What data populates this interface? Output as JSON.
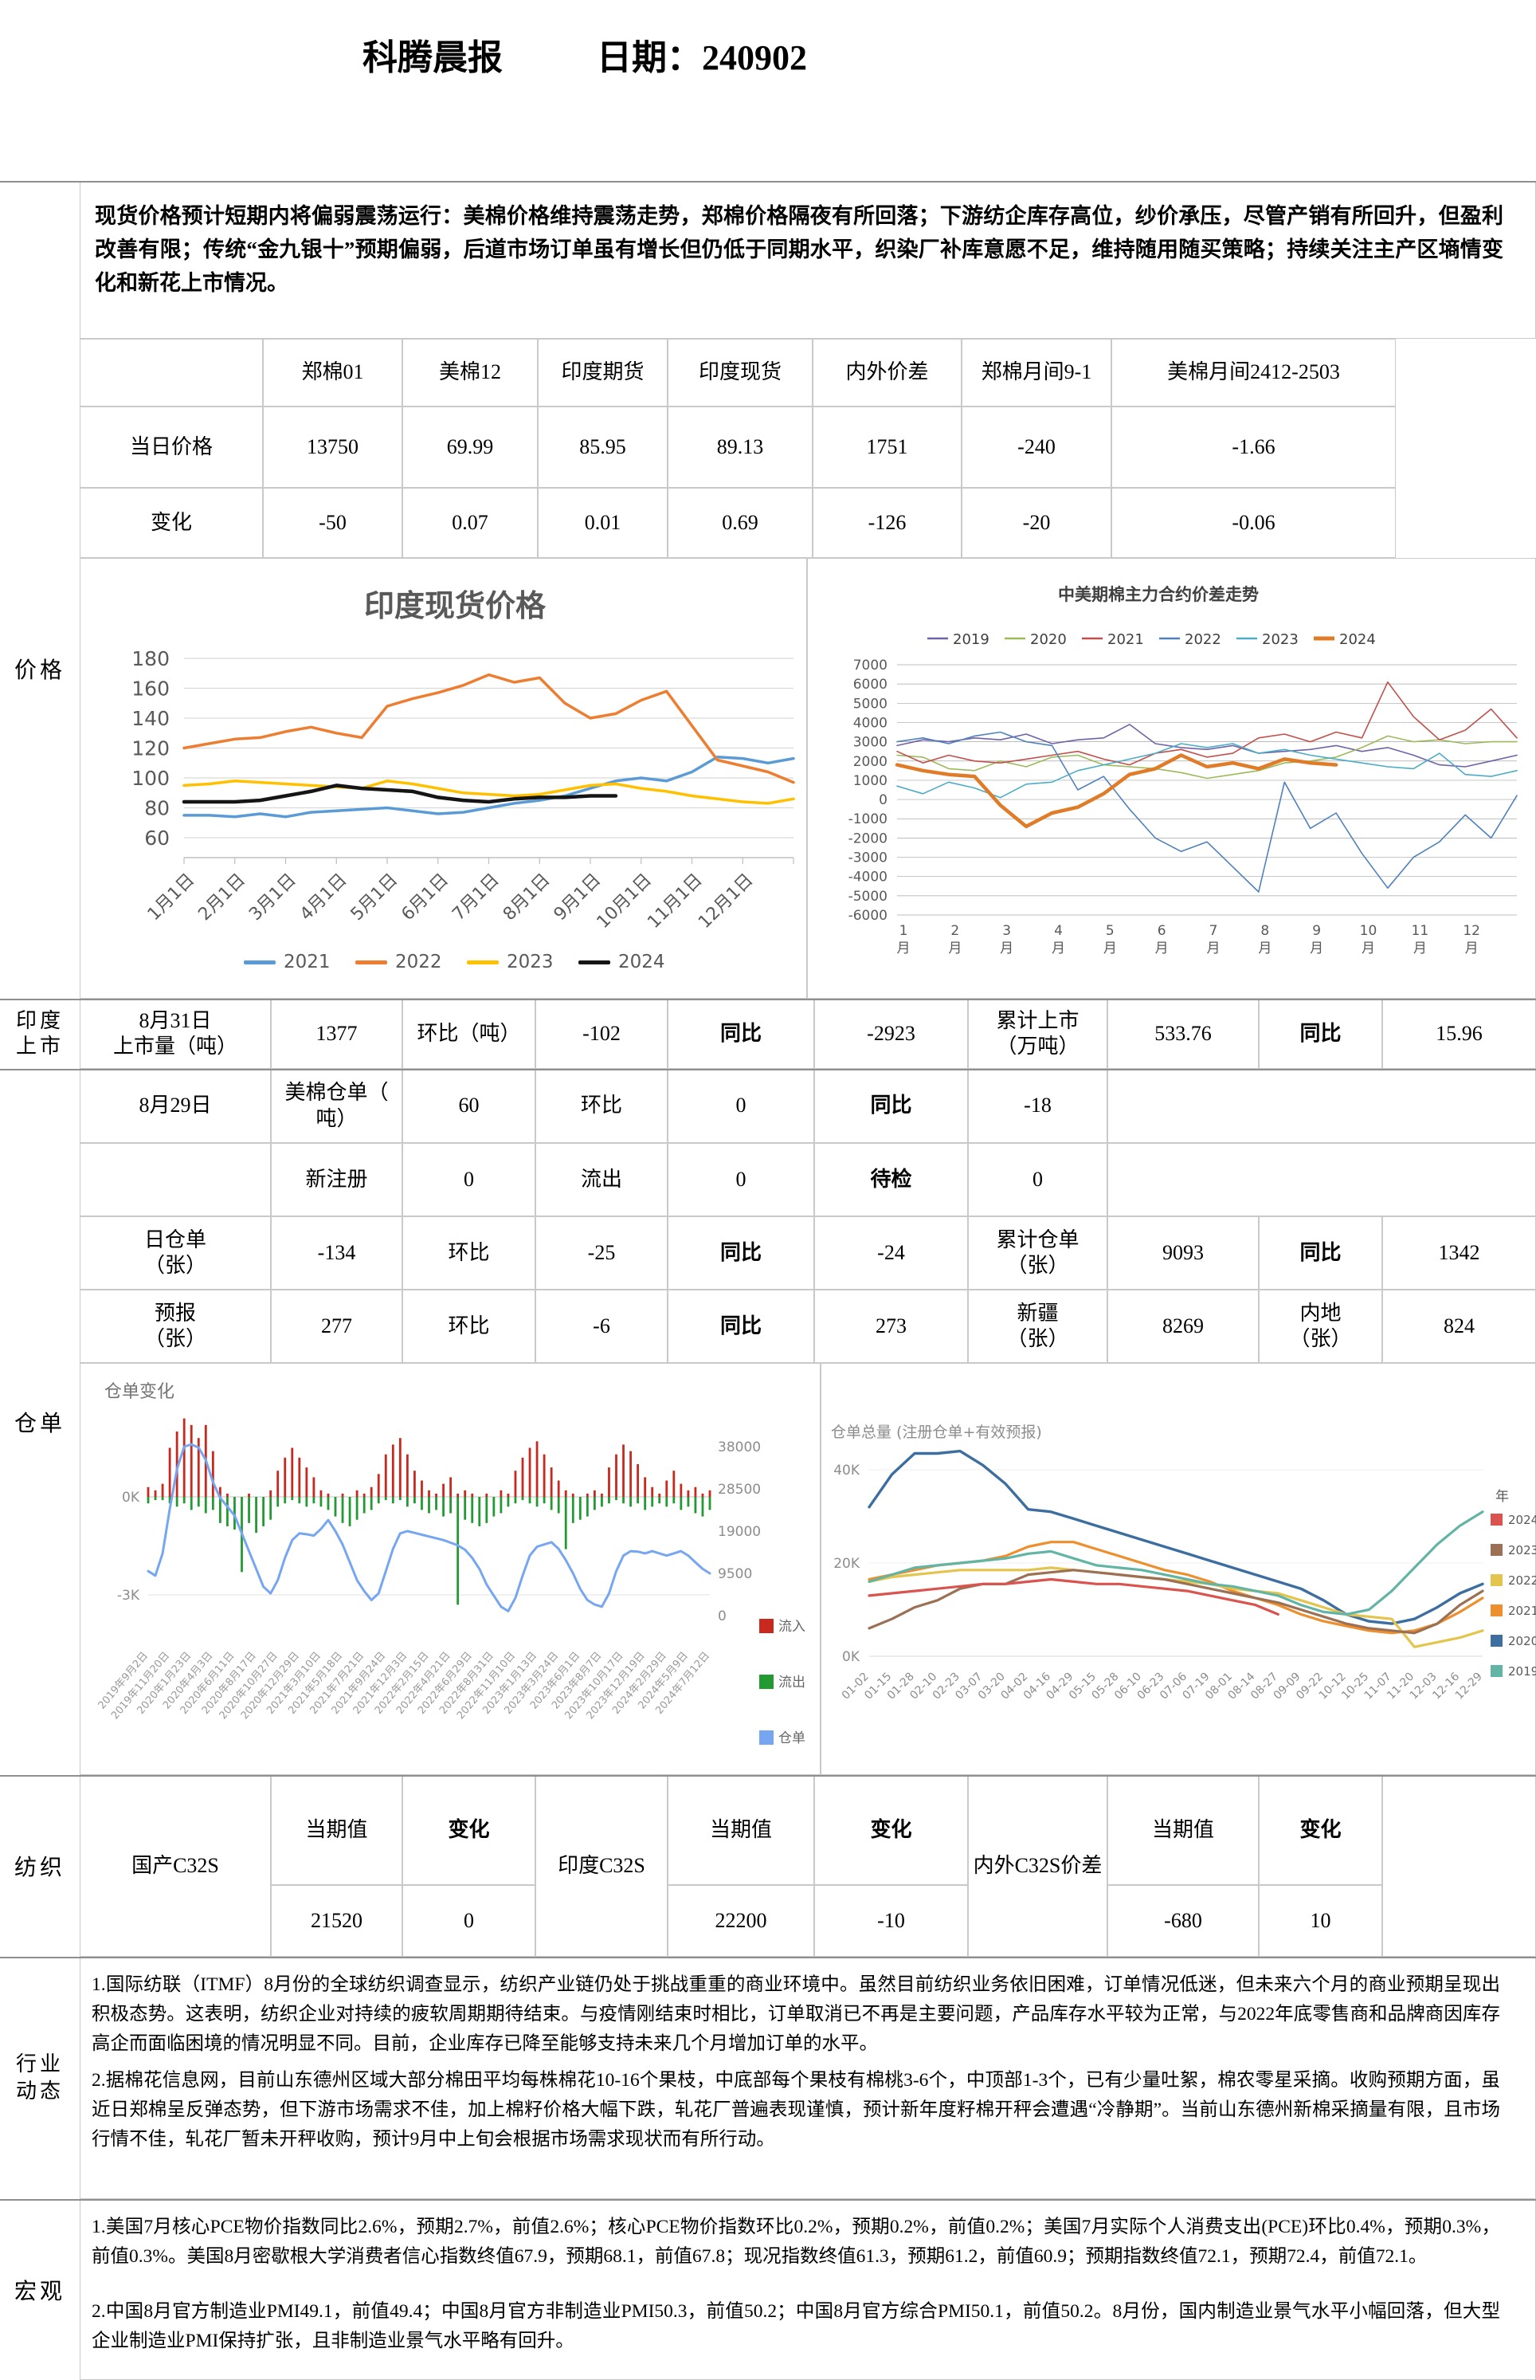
{
  "title": {
    "report": "科腾晨报",
    "date_label": "日期：240902"
  },
  "summary": {
    "text": "现货价格预计短期内将偏弱震荡运行：美棉价格维持震荡走势，郑棉价格隔夜有所回落；下游纺企库存高位，纱价承压，尽管产销有所回升，但盈利改善有限；传统“金九银十”预期偏弱，后道市场订单虽有增长但仍低于同期水平，织染厂补库意愿不足，维持随用随买策略；持续关注主产区墒情变化和新花上市情况。"
  },
  "sections": {
    "price": "价格",
    "india1": "印度",
    "india2": "上市",
    "warehouse": "仓单",
    "textile": "纺织",
    "industry1": "行业",
    "industry2": "动态",
    "macro": "宏观"
  },
  "price_table": {
    "headers": [
      "郑棉01",
      "美棉12",
      "印度期货",
      "印度现货",
      "内外价差",
      "郑棉月间9-1",
      "美棉月间2412-2503"
    ],
    "row1_label": "当日价格",
    "row1": [
      "13750",
      "69.99",
      "85.95",
      "89.13",
      "1751",
      "-240",
      "-1.66"
    ],
    "row2_label": "变化",
    "row2": [
      "-50",
      "0.07",
      "0.01",
      "0.69",
      "-126",
      "-20",
      "-0.06"
    ]
  },
  "india_row": {
    "date": "8月31日",
    "date2": "上市量（吨）",
    "v1": "1377",
    "l1": "环比（吨）",
    "v2": "-102",
    "l2": "同比",
    "v3": "-2923",
    "l3a": "累计上市",
    "l3b": "（万吨）",
    "v4": "533.76",
    "l4": "同比",
    "v5": "15.96"
  },
  "wh": {
    "r829": {
      "date": "8月29日",
      "l1a": "美棉仓单（",
      "l1b": "吨）",
      "v1": "60",
      "l2": "环比",
      "v2": "0",
      "l3": "同比",
      "v3": "-18"
    },
    "rnew": {
      "l1": "新注册",
      "v1": "0",
      "l2": "流出",
      "v2": "0",
      "l3": "待检",
      "v3": "0"
    },
    "rdaily": {
      "l0a": "日仓单",
      "l0b": "（张）",
      "v1": "-134",
      "l1": "环比",
      "v2": "-25",
      "l2": "同比",
      "v3": "-24",
      "l3a": "累计仓单",
      "l3b": "（张）",
      "v4": "9093",
      "l4": "同比",
      "v5": "1342"
    },
    "rfore": {
      "l0a": "预报",
      "l0b": "（张）",
      "v1": "277",
      "l1": "环比",
      "v2": "-6",
      "l2": "同比",
      "v3": "273",
      "l3a": "新疆",
      "l3b": "（张）",
      "v4": "8269",
      "l4a": "内地",
      "l4b": "（张）",
      "v5": "824"
    }
  },
  "textile_row": {
    "g1": "国产C32S",
    "g2": "印度C32S",
    "g3": "内外C32S价差",
    "h_cur": "当期值",
    "h_chg": "变化",
    "v": [
      "21520",
      "0",
      "22200",
      "-10",
      "-680",
      "10"
    ]
  },
  "industry": {
    "p1": "1.国际纺联（ITMF）8月份的全球纺织调查显示，纺织产业链仍处于挑战重重的商业环境中。虽然目前纺织业务依旧困难，订单情况低迷，但未来六个月的商业预期呈现出积极态势。这表明，纺织企业对持续的疲软周期期待结束。与疫情刚结束时相比，订单取消已不再是主要问题，产品库存水平较为正常，与2022年底零售商和品牌商因库存高企而面临困境的情况明显不同。目前，企业库存已降至能够支持未来几个月增加订单的水平。",
    "p2": "2.据棉花信息网，目前山东德州区域大部分棉田平均每株棉花10-16个果枝，中底部每个果枝有棉桃3-6个，中顶部1-3个，已有少量吐絮，棉农零星采摘。收购预期方面，虽近日郑棉呈反弹态势，但下游市场需求不佳，加上棉籽价格大幅下跌，轧花厂普遍表现谨慎，预计新年度籽棉开秤会遭遇“冷静期”。当前山东德州新棉采摘量有限，且市场行情不佳，轧花厂暂未开秤收购，预计9月中上旬会根据市场需求现状而有所行动。"
  },
  "macro": {
    "p1": "1.美国7月核心PCE物价指数同比2.6%，预期2.7%，前值2.6%；核心PCE物价指数环比0.2%，预期0.2%，前值0.2%；美国7月实际个人消费支出(PCE)环比0.4%，预期0.3%，前值0.3%。美国8月密歇根大学消费者信心指数终值67.9，预期68.1，前值67.8；现况指数终值61.3，预期61.2，前值60.9；预期指数终值72.1，预期72.4，前值72.1。",
    "p2": "2.中国8月官方制造业PMI49.1，前值49.4；中国8月官方非制造业PMI50.3，前值50.2；中国8月官方综合PMI50.1，前值50.2。8月份，国内制造业景气水平小幅回落，但大型企业制造业PMI保持扩张，且非制造业景气水平略有回升。"
  },
  "chart_data": [
    {
      "id": "india_spot",
      "type": "line",
      "title": "印度现货价格",
      "ylim": [
        60,
        180
      ],
      "yticks": [
        60,
        80,
        100,
        120,
        140,
        160,
        180
      ],
      "x_labels": [
        "1月1日",
        "2月1日",
        "3月1日",
        "4月1日",
        "5月1日",
        "6月1日",
        "7月1日",
        "8月1日",
        "9月1日",
        "10月1日",
        "11月1日",
        "12月1日"
      ],
      "x_den": 24,
      "legend_position": "bottom",
      "grid": true,
      "series": [
        {
          "name": "2021",
          "color": "#5B9BD5",
          "width": 3.5,
          "values": [
            75,
            75,
            74,
            76,
            74,
            77,
            78,
            79,
            80,
            78,
            76,
            77,
            80,
            83,
            85,
            88,
            93,
            98,
            100,
            98,
            104,
            114,
            113,
            110,
            113
          ]
        },
        {
          "name": "2022",
          "color": "#ED7D31",
          "width": 3.5,
          "values": [
            120,
            123,
            126,
            127,
            131,
            134,
            130,
            127,
            148,
            153,
            157,
            162,
            169,
            164,
            167,
            150,
            140,
            143,
            152,
            158,
            135,
            112,
            108,
            104,
            97
          ]
        },
        {
          "name": "2023",
          "color": "#FFC000",
          "width": 3.5,
          "values": [
            95,
            96,
            98,
            97,
            96,
            95,
            94,
            93,
            98,
            96,
            93,
            90,
            89,
            88,
            89,
            92,
            95,
            96,
            93,
            91,
            88,
            86,
            84,
            83,
            86
          ]
        },
        {
          "name": "2024",
          "color": "#151515",
          "width": 4.5,
          "values": [
            84,
            84,
            84,
            85,
            88,
            91,
            95,
            93,
            92,
            91,
            87,
            85,
            84,
            86,
            87,
            87,
            88,
            88
          ]
        }
      ]
    },
    {
      "id": "spread",
      "type": "line",
      "title": "中美期棉主力合约价差走势",
      "ylim": [
        -6000,
        7000
      ],
      "ytick_step": 1000,
      "x_labels": [
        "1月",
        "2月",
        "3月",
        "4月",
        "5月",
        "6月",
        "7月",
        "8月",
        "9月",
        "10月",
        "11月",
        "12月"
      ],
      "x_den": 24,
      "legend_position": "top",
      "grid": true,
      "series": [
        {
          "name": "2019",
          "color": "#6F62A8",
          "width": 1.6,
          "values": [
            2800,
            3100,
            3000,
            3200,
            3100,
            3400,
            2900,
            3100,
            3200,
            3900,
            2900,
            2700,
            2600,
            2800,
            2400,
            2500,
            2600,
            2800,
            2500,
            2700,
            2300,
            1800,
            1700,
            2000,
            2300
          ]
        },
        {
          "name": "2020",
          "color": "#9BBB59",
          "width": 1.6,
          "values": [
            2300,
            2200,
            1600,
            1500,
            2000,
            1700,
            2200,
            2300,
            1800,
            1700,
            1600,
            1400,
            1100,
            1300,
            1500,
            1900,
            2000,
            2200,
            2700,
            3300,
            3000,
            3100,
            2900,
            3000,
            3000
          ]
        },
        {
          "name": "2021",
          "color": "#C0504D",
          "width": 1.6,
          "values": [
            2500,
            1900,
            2300,
            2000,
            1900,
            2100,
            2300,
            2500,
            2100,
            1800,
            2400,
            2600,
            2200,
            2400,
            3200,
            3400,
            3000,
            3500,
            3200,
            6100,
            4300,
            3100,
            3600,
            4700,
            3200
          ]
        },
        {
          "name": "2022",
          "color": "#4F81BD",
          "width": 1.6,
          "values": [
            3000,
            3200,
            2900,
            3300,
            3500,
            3000,
            2800,
            500,
            1200,
            -500,
            -2000,
            -2700,
            -2200,
            -3500,
            -4800,
            900,
            -1500,
            -700,
            -2800,
            -4600,
            -3000,
            -2200,
            -800,
            -2000,
            200
          ]
        },
        {
          "name": "2023",
          "color": "#4BACC6",
          "width": 1.6,
          "values": [
            700,
            300,
            900,
            600,
            100,
            800,
            900,
            1500,
            1800,
            2100,
            2400,
            2900,
            2700,
            2900,
            2400,
            2600,
            2300,
            2100,
            1900,
            1700,
            1600,
            2400,
            1300,
            1200,
            1500
          ]
        },
        {
          "name": "2024",
          "color": "#E07B28",
          "width": 4.5,
          "values": [
            1800,
            1500,
            1300,
            1200,
            -300,
            -1400,
            -700,
            -400,
            300,
            1300,
            1600,
            2300,
            1700,
            1900,
            1600,
            2100,
            1900,
            1800
          ]
        }
      ]
    },
    {
      "id": "wh_change",
      "type": "bar-line",
      "title": "仓单变化",
      "left_axis_labels": [
        "0K",
        "-3K"
      ],
      "right_axis_ticks": [
        38000,
        28500,
        19000,
        9500,
        0
      ],
      "legend": [
        {
          "name": "流入",
          "color": "#C8281E"
        },
        {
          "name": "流出",
          "color": "#229A31"
        },
        {
          "name": "仓单",
          "color": "#76A6F2"
        }
      ],
      "x_labels": [
        "2019年9月2日",
        "2019年11月20日",
        "2020年1月23日",
        "2020年4月3日",
        "2020年6月11日",
        "2020年8月17日",
        "2020年10月27日",
        "2020年12月29日",
        "2021年3月10日",
        "2021年5月18日",
        "2021年7月21日",
        "2021年9月24日",
        "2021年12月3日",
        "2022年2月15日",
        "2022年4月21日",
        "2022年6月29日",
        "2022年8月31日",
        "2022年11月10日",
        "2023年1月13日",
        "2023年3月24日",
        "2023年6月1日",
        "2023年8月7日",
        "2023年10月17日",
        "2023年12月19日",
        "2024年2月29日",
        "2024年5月9日",
        "2024年7月12日"
      ],
      "line_values_k": [
        10,
        9,
        14,
        24,
        33,
        38,
        38.5,
        37.8,
        35,
        30,
        26.5,
        24.5,
        22.5,
        18.5,
        14.5,
        10.5,
        6.5,
        5,
        8,
        13,
        17,
        18.5,
        18.3,
        18,
        19.5,
        21.5,
        19,
        16,
        12,
        8,
        5.5,
        3.5,
        5,
        10,
        15,
        18.5,
        19,
        18.6,
        18.2,
        17.8,
        17.4,
        17,
        16.4,
        15.8,
        14.8,
        13,
        10.5,
        7,
        4.5,
        2,
        1,
        4,
        9,
        13.5,
        15.5,
        16,
        16.5,
        15,
        12.5,
        9.5,
        6,
        3.5,
        2.5,
        2,
        5,
        10,
        13.5,
        14.5,
        14.4,
        14,
        14.5,
        14,
        13.5,
        14,
        14.5,
        13.5,
        12,
        10.5,
        9.5
      ],
      "inflow_k": [
        0.3,
        0.2,
        0.4,
        1.5,
        2.0,
        2.4,
        2.2,
        1.8,
        2.2,
        1.4,
        0.3,
        0.1,
        0,
        0,
        0.1,
        0,
        0,
        0.2,
        0.8,
        1.2,
        1.5,
        1.2,
        0.9,
        0.6,
        0.2,
        0.1,
        0,
        0.1,
        0,
        0.2,
        0.1,
        0.3,
        0.7,
        1.3,
        1.6,
        1.8,
        1.3,
        0.8,
        0.5,
        0.2,
        0.1,
        0.4,
        0.6,
        0.1,
        0.2,
        0.1,
        0,
        0.1,
        0,
        0.2,
        0.1,
        0.8,
        1.2,
        1.5,
        1.7,
        1.3,
        0.9,
        0.5,
        0.2,
        0.1,
        0,
        0.1,
        0.2,
        0.1,
        0.9,
        1.3,
        1.6,
        1.4,
        1.0,
        0.6,
        0.3,
        0.1,
        0.5,
        0.8,
        0.4,
        0.2,
        0.3,
        0.1,
        0.2
      ],
      "outflow_k": [
        0.2,
        0.1,
        0.1,
        0.2,
        0.3,
        0.2,
        0.4,
        0.3,
        0.5,
        0.4,
        0.8,
        0.9,
        1.0,
        2.3,
        0.8,
        1.1,
        0.9,
        0.7,
        0.3,
        0.2,
        0.1,
        0.2,
        0.3,
        0.2,
        0.3,
        0.4,
        0.6,
        0.8,
        0.9,
        0.7,
        0.5,
        0.4,
        0.2,
        0.1,
        0.2,
        0.1,
        0.3,
        0.2,
        0.4,
        0.5,
        0.4,
        0.6,
        0.5,
        3.3,
        0.7,
        0.8,
        0.9,
        0.8,
        0.6,
        0.5,
        0.3,
        0.2,
        0.1,
        0.2,
        0.3,
        0.2,
        0.4,
        0.5,
        1.6,
        0.8,
        0.7,
        0.6,
        0.4,
        0.3,
        0.2,
        0.1,
        0.2,
        0.3,
        0.2,
        0.4,
        0.3,
        0.2,
        0.3,
        0.2,
        0.4,
        0.3,
        0.5,
        0.6,
        0.4
      ]
    },
    {
      "id": "wh_total",
      "type": "line",
      "title": "仓单总量 (注册仓单+有效预报)",
      "legend_title": "年",
      "yticks_k": [
        0,
        20,
        40
      ],
      "x_labels": [
        "01-02",
        "01-15",
        "01-28",
        "02-10",
        "02-23",
        "03-07",
        "03-20",
        "04-02",
        "04-16",
        "04-29",
        "05-15",
        "05-28",
        "06-10",
        "06-23",
        "07-06",
        "07-19",
        "08-01",
        "08-14",
        "08-27",
        "09-09",
        "09-22",
        "10-12",
        "10-25",
        "11-07",
        "11-20",
        "12-03",
        "12-16",
        "12-29"
      ],
      "x_den": 27,
      "draw_order": [
        "2020",
        "2021",
        "2022",
        "2023",
        "2019",
        "2024"
      ],
      "series": [
        {
          "name": "2024",
          "color": "#D9534F",
          "width": 3.2,
          "values": [
            13,
            13.5,
            14,
            14.5,
            15,
            15.5,
            15.5,
            16,
            16.5,
            16,
            15.5,
            15.5,
            15,
            14.5,
            14,
            13,
            12,
            11,
            9
          ]
        },
        {
          "name": "2023",
          "color": "#9C7055",
          "width": 3.2,
          "values": [
            6,
            8,
            10.5,
            12,
            14.5,
            15.5,
            15.5,
            17.5,
            18,
            18.5,
            18,
            17.5,
            17,
            16.5,
            15.5,
            14.5,
            13.5,
            12.5,
            11.5,
            10,
            8.5,
            7,
            6,
            5.5,
            5,
            7,
            11,
            14
          ]
        },
        {
          "name": "2022",
          "color": "#E3C44C",
          "width": 3.2,
          "values": [
            16,
            17,
            17.5,
            18,
            18.5,
            18.5,
            18.5,
            18.5,
            19,
            18.5,
            18,
            17.5,
            17,
            16.5,
            16,
            15.5,
            14.5,
            14,
            13.5,
            12,
            10.5,
            9,
            8.5,
            8,
            2,
            3,
            4,
            5.5
          ]
        },
        {
          "name": "2021",
          "color": "#EE8F2D",
          "width": 3.2,
          "values": [
            16.5,
            17.5,
            18.5,
            19.5,
            20,
            20.5,
            21.5,
            23.5,
            24.5,
            24.5,
            23,
            21.5,
            20,
            18.5,
            17.5,
            16,
            14,
            12.5,
            11,
            9,
            7.5,
            6.5,
            5.5,
            5,
            5.5,
            7,
            9.5,
            12.5
          ]
        },
        {
          "name": "2020",
          "color": "#3C6E9F",
          "width": 3.4,
          "values": [
            32,
            39,
            43.5,
            43.5,
            44,
            41,
            37,
            31.5,
            31,
            29.5,
            28,
            26.5,
            25,
            23.5,
            22,
            20.5,
            19,
            17.5,
            16,
            14.5,
            12,
            9,
            7.5,
            7,
            8,
            10.5,
            13.5,
            15.5
          ]
        },
        {
          "name": "2019",
          "color": "#62B5A5",
          "width": 3.2,
          "values": [
            16,
            17.5,
            19,
            19.5,
            20,
            20.5,
            21,
            22,
            22.5,
            21,
            19.5,
            19,
            18.5,
            17.5,
            16.5,
            15.5,
            15,
            14,
            13,
            11,
            9.5,
            9,
            10,
            14,
            19,
            24,
            28,
            31
          ]
        }
      ]
    }
  ]
}
